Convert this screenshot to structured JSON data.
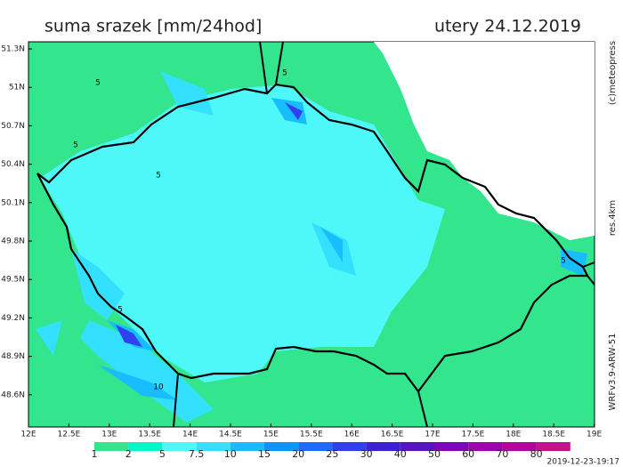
{
  "header": {
    "title": "suma srazek [mm/24hod]",
    "date": "utery 24.12.2019"
  },
  "map": {
    "lat_labels": [
      "51.3N",
      "51N",
      "50.7N",
      "50.4N",
      "50.1N",
      "49.8N",
      "49.5N",
      "49.2N",
      "48.9N",
      "48.6N"
    ],
    "lon_labels": [
      "12E",
      "12.5E",
      "13E",
      "13.5E",
      "14E",
      "14.5E",
      "15E",
      "15.5E",
      "16E",
      "16.5E",
      "17E",
      "17.5E",
      "18E",
      "18.5E",
      "19E"
    ],
    "contour_labels": [
      "5",
      "5",
      "5",
      "5",
      "5",
      "5",
      "10"
    ]
  },
  "colorbar": {
    "labels": [
      "1",
      "2",
      "5",
      "7.5",
      "10",
      "15",
      "20",
      "25",
      "30",
      "40",
      "50",
      "60",
      "70",
      "80"
    ],
    "colors": [
      "#ffffff",
      "#33e58c",
      "#00f5c8",
      "#4ef8f8",
      "#33e1ff",
      "#17bdff",
      "#0a96ff",
      "#2268ff",
      "#3040f0",
      "#3b22d9",
      "#5a14c8",
      "#7a0ab8",
      "#9a06a8",
      "#b0069a",
      "#c8108c"
    ]
  },
  "side_texts": [
    "(c)meteopress",
    "res.4km",
    "WRFv3.9-ARW-51"
  ],
  "timestamp": "2019-12-23-19:17"
}
